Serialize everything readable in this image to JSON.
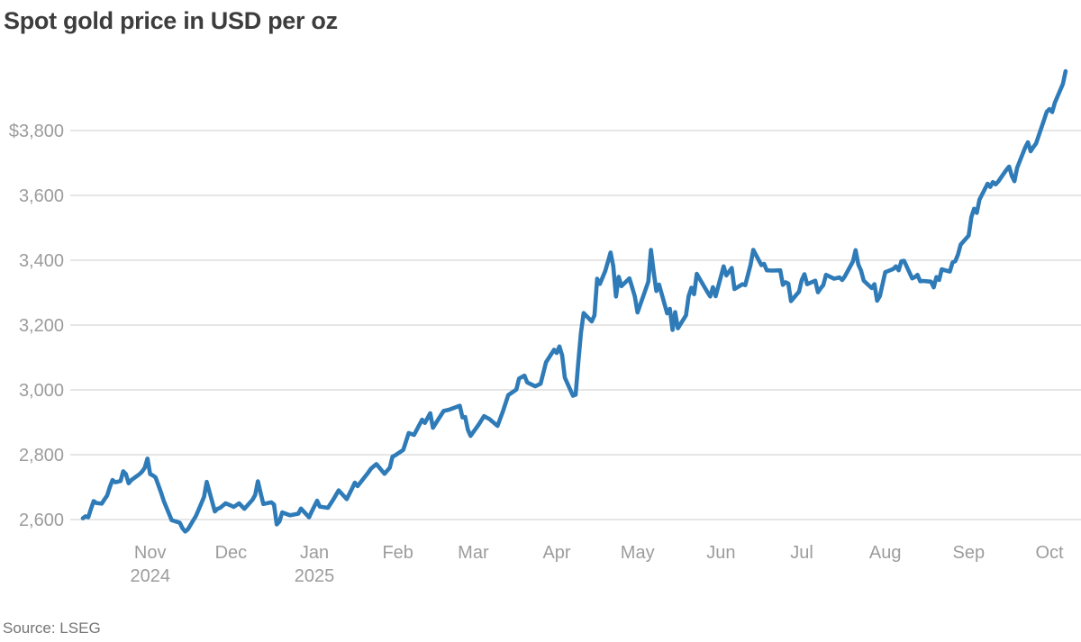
{
  "page": {
    "title": "Spot gold price in USD per oz",
    "source": "Source: LSEG"
  },
  "chart_data": {
    "type": "line",
    "title": "Spot gold price in USD per oz",
    "source": "Source: LSEG",
    "grid": true,
    "legend": "none",
    "line_color": "#2e7bb8",
    "x_axis": {
      "unit": "days from 2024-10-07",
      "range": [
        0,
        366
      ],
      "ticks": [
        {
          "day": 25,
          "label": "Nov",
          "sublabel": "2024"
        },
        {
          "day": 55,
          "label": "Dec",
          "sublabel": ""
        },
        {
          "day": 86,
          "label": "Jan",
          "sublabel": "2025"
        },
        {
          "day": 117,
          "label": "Feb",
          "sublabel": ""
        },
        {
          "day": 145,
          "label": "Mar",
          "sublabel": ""
        },
        {
          "day": 176,
          "label": "Apr",
          "sublabel": ""
        },
        {
          "day": 206,
          "label": "May",
          "sublabel": ""
        },
        {
          "day": 237,
          "label": "Jun",
          "sublabel": ""
        },
        {
          "day": 267,
          "label": "Jul",
          "sublabel": ""
        },
        {
          "day": 298,
          "label": "Aug",
          "sublabel": ""
        },
        {
          "day": 329,
          "label": "Sep",
          "sublabel": ""
        },
        {
          "day": 359,
          "label": "Oct",
          "sublabel": ""
        }
      ]
    },
    "y_axis": {
      "unit": "USD per oz",
      "range": [
        2540,
        4000
      ],
      "ticks": [
        {
          "value": 2600,
          "label": "2,600"
        },
        {
          "value": 2800,
          "label": "2,800"
        },
        {
          "value": 3000,
          "label": "3,000"
        },
        {
          "value": 3200,
          "label": "3,200"
        },
        {
          "value": 3400,
          "label": "3,400"
        },
        {
          "value": 3600,
          "label": "3,600"
        },
        {
          "value": 3800,
          "label": "$3,800"
        }
      ]
    },
    "series": [
      {
        "name": "Spot gold price (USD per oz)",
        "color": "#2e7bb8",
        "points": [
          [
            0,
            2604
          ],
          [
            1,
            2610
          ],
          [
            2,
            2607
          ],
          [
            3,
            2633
          ],
          [
            4,
            2657
          ],
          [
            5,
            2651
          ],
          [
            7,
            2649
          ],
          [
            8,
            2662
          ],
          [
            9,
            2674
          ],
          [
            10,
            2700
          ],
          [
            11,
            2722
          ],
          [
            12,
            2715
          ],
          [
            14,
            2719
          ],
          [
            15,
            2749
          ],
          [
            16,
            2740
          ],
          [
            17,
            2712
          ],
          [
            18,
            2722
          ],
          [
            21,
            2740
          ],
          [
            22,
            2748
          ],
          [
            23,
            2760
          ],
          [
            24,
            2788
          ],
          [
            25,
            2740
          ],
          [
            26,
            2736
          ],
          [
            27,
            2730
          ],
          [
            29,
            2684
          ],
          [
            30,
            2658
          ],
          [
            32,
            2618
          ],
          [
            33,
            2598
          ],
          [
            36,
            2590
          ],
          [
            37,
            2573
          ],
          [
            38,
            2563
          ],
          [
            39,
            2570
          ],
          [
            42,
            2611
          ],
          [
            44,
            2650
          ],
          [
            45,
            2670
          ],
          [
            46,
            2716
          ],
          [
            49,
            2625
          ],
          [
            50,
            2633
          ],
          [
            51,
            2636
          ],
          [
            53,
            2650
          ],
          [
            55,
            2643
          ],
          [
            56,
            2639
          ],
          [
            58,
            2650
          ],
          [
            60,
            2633
          ],
          [
            63,
            2661
          ],
          [
            64,
            2676
          ],
          [
            65,
            2718
          ],
          [
            66,
            2682
          ],
          [
            67,
            2648
          ],
          [
            70,
            2653
          ],
          [
            71,
            2646
          ],
          [
            72,
            2585
          ],
          [
            73,
            2594
          ],
          [
            74,
            2622
          ],
          [
            77,
            2613
          ],
          [
            80,
            2618
          ],
          [
            81,
            2634
          ],
          [
            84,
            2607
          ],
          [
            85,
            2625
          ],
          [
            87,
            2658
          ],
          [
            88,
            2640
          ],
          [
            91,
            2636
          ],
          [
            93,
            2662
          ],
          [
            95,
            2690
          ],
          [
            98,
            2663
          ],
          [
            100,
            2696
          ],
          [
            101,
            2714
          ],
          [
            102,
            2703
          ],
          [
            106,
            2745
          ],
          [
            107,
            2757
          ],
          [
            109,
            2771
          ],
          [
            112,
            2741
          ],
          [
            114,
            2760
          ],
          [
            115,
            2794
          ],
          [
            116,
            2798
          ],
          [
            119,
            2815
          ],
          [
            121,
            2867
          ],
          [
            123,
            2861
          ],
          [
            126,
            2908
          ],
          [
            127,
            2898
          ],
          [
            129,
            2928
          ],
          [
            130,
            2883
          ],
          [
            134,
            2935
          ],
          [
            136,
            2939
          ],
          [
            140,
            2951
          ],
          [
            141,
            2915
          ],
          [
            142,
            2916
          ],
          [
            143,
            2877
          ],
          [
            144,
            2858
          ],
          [
            147,
            2893
          ],
          [
            149,
            2919
          ],
          [
            151,
            2910
          ],
          [
            154,
            2889
          ],
          [
            156,
            2934
          ],
          [
            158,
            2984
          ],
          [
            161,
            3001
          ],
          [
            162,
            3035
          ],
          [
            164,
            3044
          ],
          [
            165,
            3023
          ],
          [
            168,
            3011
          ],
          [
            170,
            3019
          ],
          [
            172,
            3085
          ],
          [
            175,
            3124
          ],
          [
            176,
            3114
          ],
          [
            177,
            3134
          ],
          [
            178,
            3107
          ],
          [
            179,
            3038
          ],
          [
            182,
            2982
          ],
          [
            183,
            2985
          ],
          [
            184,
            3083
          ],
          [
            185,
            3176
          ],
          [
            186,
            3237
          ],
          [
            189,
            3211
          ],
          [
            190,
            3230
          ],
          [
            191,
            3343
          ],
          [
            192,
            3327
          ],
          [
            194,
            3366
          ],
          [
            196,
            3424
          ],
          [
            197,
            3381
          ],
          [
            198,
            3288
          ],
          [
            199,
            3349
          ],
          [
            200,
            3320
          ],
          [
            203,
            3344
          ],
          [
            204,
            3317
          ],
          [
            205,
            3288
          ],
          [
            206,
            3239
          ],
          [
            209,
            3310
          ],
          [
            210,
            3334
          ],
          [
            211,
            3432
          ],
          [
            212,
            3365
          ],
          [
            213,
            3305
          ],
          [
            214,
            3325
          ],
          [
            217,
            3236
          ],
          [
            218,
            3250
          ],
          [
            219,
            3185
          ],
          [
            220,
            3240
          ],
          [
            221,
            3190
          ],
          [
            224,
            3230
          ],
          [
            225,
            3290
          ],
          [
            226,
            3315
          ],
          [
            227,
            3295
          ],
          [
            228,
            3358
          ],
          [
            232,
            3301
          ],
          [
            233,
            3288
          ],
          [
            234,
            3317
          ],
          [
            235,
            3289
          ],
          [
            238,
            3381
          ],
          [
            239,
            3353
          ],
          [
            241,
            3376
          ],
          [
            242,
            3311
          ],
          [
            245,
            3326
          ],
          [
            246,
            3323
          ],
          [
            248,
            3386
          ],
          [
            249,
            3432
          ],
          [
            252,
            3385
          ],
          [
            253,
            3389
          ],
          [
            254,
            3369
          ],
          [
            256,
            3368
          ],
          [
            259,
            3369
          ],
          [
            260,
            3324
          ],
          [
            261,
            3332
          ],
          [
            262,
            3328
          ],
          [
            263,
            3274
          ],
          [
            266,
            3303
          ],
          [
            267,
            3339
          ],
          [
            268,
            3357
          ],
          [
            269,
            3326
          ],
          [
            272,
            3337
          ],
          [
            273,
            3301
          ],
          [
            274,
            3313
          ],
          [
            275,
            3323
          ],
          [
            276,
            3355
          ],
          [
            279,
            3343
          ],
          [
            281,
            3347
          ],
          [
            282,
            3339
          ],
          [
            283,
            3350
          ],
          [
            286,
            3396
          ],
          [
            287,
            3431
          ],
          [
            288,
            3387
          ],
          [
            289,
            3368
          ],
          [
            290,
            3337
          ],
          [
            293,
            3314
          ],
          [
            294,
            3326
          ],
          [
            295,
            3275
          ],
          [
            296,
            3289
          ],
          [
            298,
            3363
          ],
          [
            301,
            3373
          ],
          [
            302,
            3381
          ],
          [
            303,
            3369
          ],
          [
            304,
            3397
          ],
          [
            305,
            3398
          ],
          [
            308,
            3344
          ],
          [
            309,
            3348
          ],
          [
            310,
            3355
          ],
          [
            311,
            3335
          ],
          [
            312,
            3336
          ],
          [
            315,
            3334
          ],
          [
            316,
            3316
          ],
          [
            317,
            3348
          ],
          [
            318,
            3339
          ],
          [
            319,
            3372
          ],
          [
            322,
            3365
          ],
          [
            323,
            3393
          ],
          [
            324,
            3397
          ],
          [
            325,
            3417
          ],
          [
            326,
            3448
          ],
          [
            329,
            3476
          ],
          [
            330,
            3533
          ],
          [
            331,
            3559
          ],
          [
            332,
            3546
          ],
          [
            333,
            3587
          ],
          [
            336,
            3636
          ],
          [
            337,
            3626
          ],
          [
            338,
            3641
          ],
          [
            339,
            3634
          ],
          [
            340,
            3643
          ],
          [
            343,
            3679
          ],
          [
            344,
            3689
          ],
          [
            345,
            3660
          ],
          [
            346,
            3644
          ],
          [
            347,
            3685
          ],
          [
            350,
            3748
          ],
          [
            351,
            3764
          ],
          [
            352,
            3736
          ],
          [
            353,
            3749
          ],
          [
            354,
            3760
          ],
          [
            357,
            3833
          ],
          [
            358,
            3858
          ],
          [
            359,
            3866
          ],
          [
            360,
            3857
          ],
          [
            361,
            3886
          ],
          [
            364,
            3944
          ],
          [
            365,
            3983
          ]
        ]
      }
    ]
  }
}
